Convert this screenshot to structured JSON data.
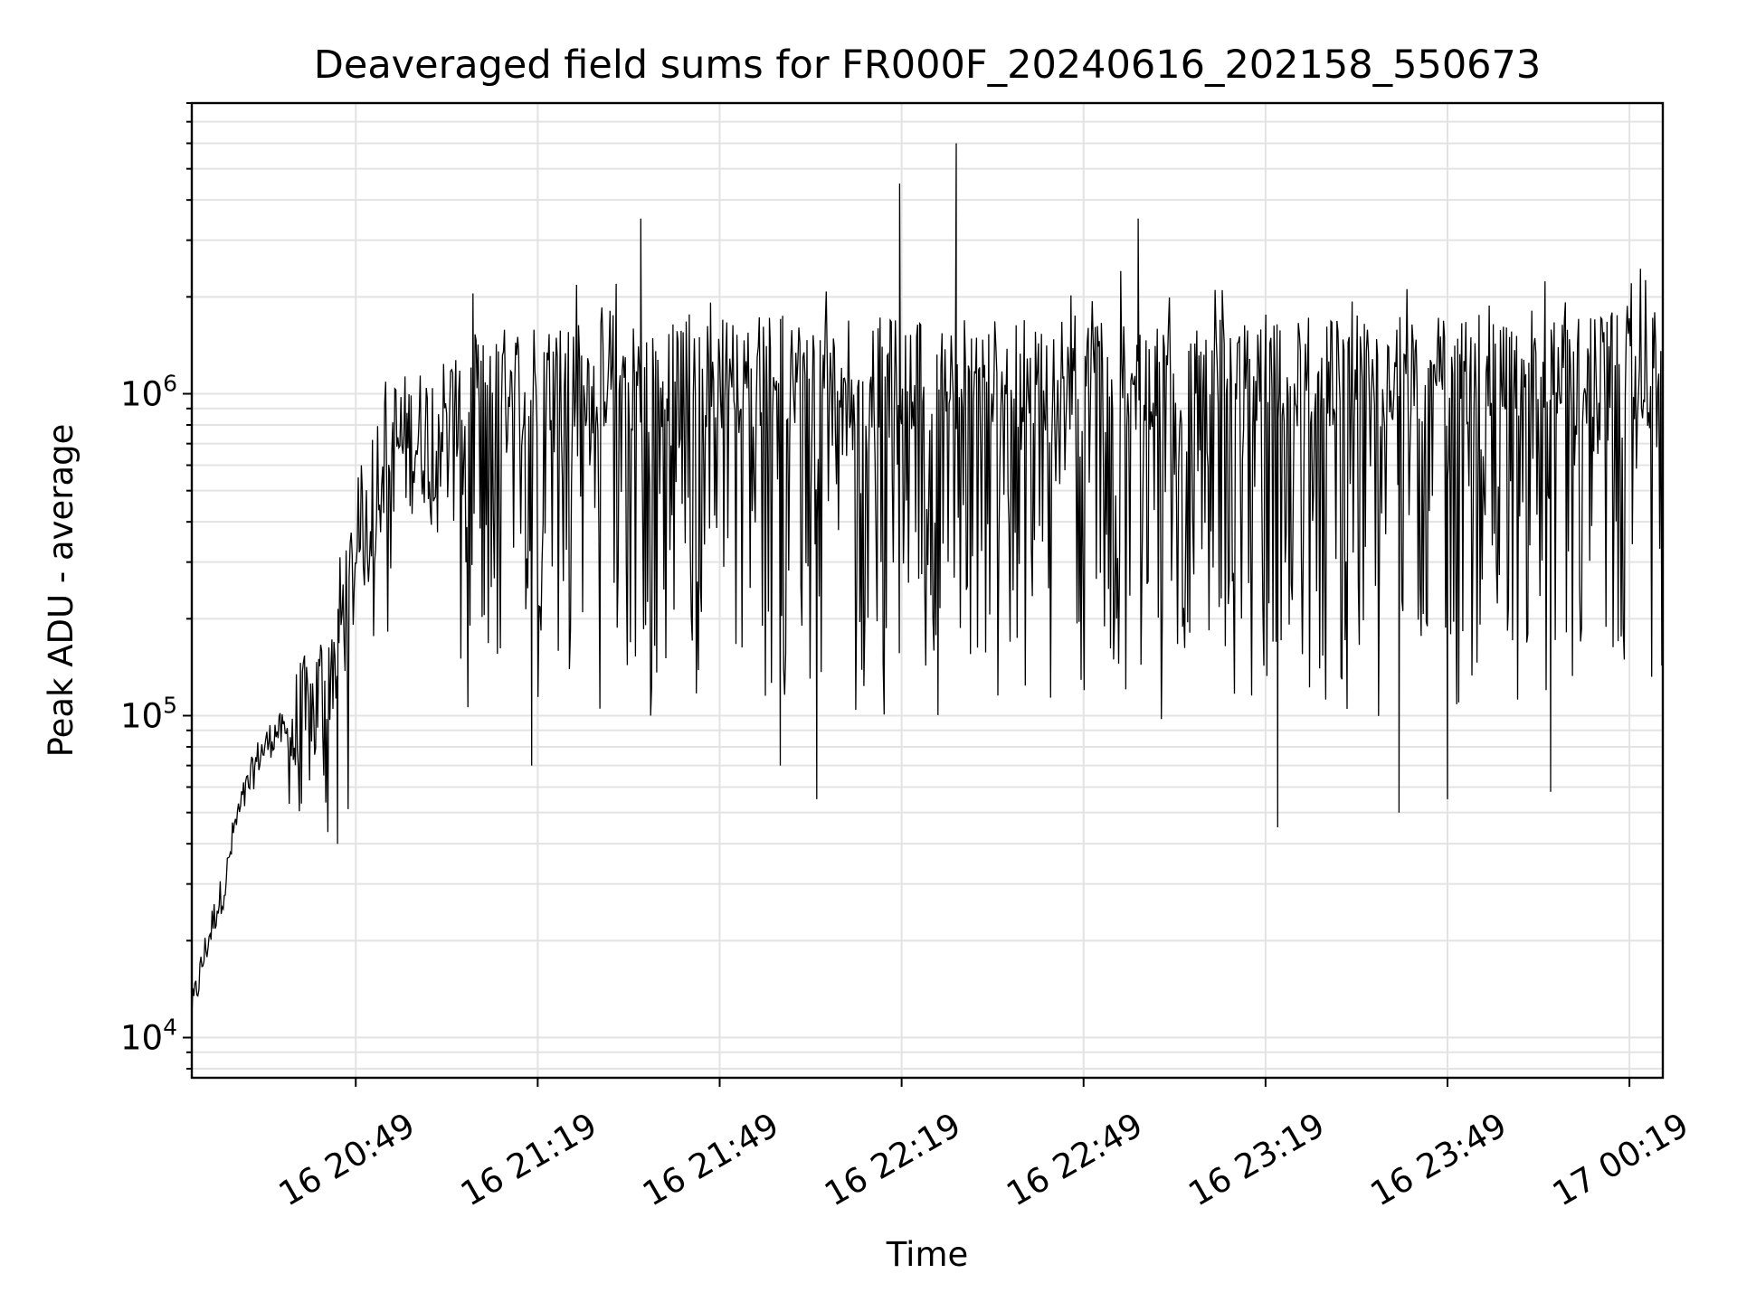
{
  "chart_data": {
    "type": "line",
    "title": "Deaveraged field sums for FR000F_20240616_202158_550673",
    "xlabel": "Time",
    "ylabel": "Peak ADU - average",
    "yscale": "log",
    "ylim": [
      7500,
      8000000
    ],
    "xlim": [
      "2024-06-16 20:21:58",
      "2024-06-17 00:24:30"
    ],
    "grid": true,
    "xticks": [
      {
        "value": "2024-06-16 20:49",
        "label": "16 20:49"
      },
      {
        "value": "2024-06-16 21:19",
        "label": "16 21:19"
      },
      {
        "value": "2024-06-16 21:49",
        "label": "16 21:49"
      },
      {
        "value": "2024-06-16 22:19",
        "label": "16 22:19"
      },
      {
        "value": "2024-06-16 22:49",
        "label": "16 22:49"
      },
      {
        "value": "2024-06-16 23:19",
        "label": "16 23:19"
      },
      {
        "value": "2024-06-16 23:49",
        "label": "16 23:49"
      },
      {
        "value": "2024-06-17 00:19",
        "label": "17 00:19"
      }
    ],
    "yticks": [
      {
        "value": 10000,
        "base": "10",
        "exp": "4"
      },
      {
        "value": 100000,
        "base": "10",
        "exp": "5"
      },
      {
        "value": 1000000,
        "base": "10",
        "exp": "6"
      }
    ],
    "series": [
      {
        "color": "#000000",
        "x_start": "2024-06-16 20:21:58",
        "x_end": "2024-06-17 00:24:30",
        "baseline": [
          [
            "2024-06-16 20:21:58",
            12000
          ],
          [
            "2024-06-16 20:24:00",
            18000
          ],
          [
            "2024-06-16 20:26:00",
            25000
          ],
          [
            "2024-06-16 20:27:30",
            30000
          ],
          [
            "2024-06-16 20:29:00",
            45000
          ],
          [
            "2024-06-16 20:30:30",
            55000
          ],
          [
            "2024-06-16 20:33:00",
            75000
          ],
          [
            "2024-06-16 20:36:00",
            90000
          ],
          [
            "2024-06-16 20:39:00",
            85000
          ],
          [
            "2024-06-16 20:42:00",
            100000
          ],
          [
            "2024-06-16 20:45:00",
            150000
          ],
          [
            "2024-06-16 20:48:00",
            250000
          ],
          [
            "2024-06-16 20:51:00",
            450000
          ],
          [
            "2024-06-16 20:54:00",
            700000
          ],
          [
            "2024-06-16 20:58:00",
            700000
          ],
          [
            "2024-06-16 21:03:00",
            800000
          ],
          [
            "2024-06-16 21:10:00",
            950000
          ],
          [
            "2024-06-16 21:20:00",
            1000000
          ],
          [
            "2024-06-16 22:00:00",
            1050000
          ],
          [
            "2024-06-16 23:00:00",
            1000000
          ],
          [
            "2024-06-16 23:40:00",
            1050000
          ],
          [
            "2024-06-17 00:24:30",
            1050000
          ]
        ],
        "spikes": [
          [
            "2024-06-16 21:36:00",
            3500000
          ],
          [
            "2024-06-16 22:18:40",
            4500000
          ],
          [
            "2024-06-16 22:28:00",
            6000000
          ],
          [
            "2024-06-16 22:58:00",
            3500000
          ]
        ],
        "dips": [
          [
            "2024-06-16 20:46:00",
            40000
          ],
          [
            "2024-06-16 21:18:00",
            70000
          ],
          [
            "2024-06-16 21:59:00",
            70000
          ],
          [
            "2024-06-16 22:05:00",
            55000
          ],
          [
            "2024-06-16 23:21:00",
            45000
          ],
          [
            "2024-06-16 23:41:00",
            50000
          ],
          [
            "2024-06-16 23:49:00",
            55000
          ],
          [
            "2024-06-17 00:06:00",
            58000
          ]
        ]
      }
    ]
  }
}
